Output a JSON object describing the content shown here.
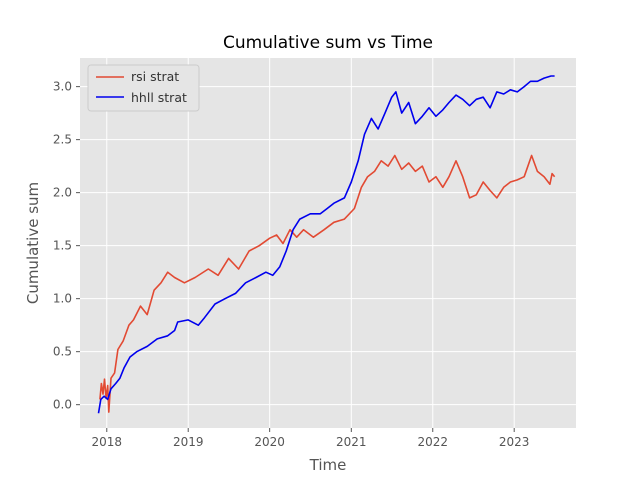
{
  "chart_data": {
    "type": "line",
    "title": "Cumulative sum vs Time",
    "xlabel": "Time",
    "ylabel": "Cumulative sum",
    "x_ticks": [
      "2018",
      "2019",
      "2020",
      "2021",
      "2022",
      "2023"
    ],
    "y_ticks": [
      "0.0",
      "0.5",
      "1.0",
      "1.5",
      "2.0",
      "2.5",
      "3.0"
    ],
    "xlim": [
      "2017-09-03",
      "2023-10-05"
    ],
    "ylim": [
      -0.22,
      3.27
    ],
    "grid": true,
    "legend_position": "top-left",
    "series": [
      {
        "name": "rsi strat",
        "color": "#E24A33",
        "points": [
          [
            "2017-12-01",
            0.05
          ],
          [
            "2017-12-08",
            0.2
          ],
          [
            "2017-12-15",
            0.1
          ],
          [
            "2017-12-22",
            0.24
          ],
          [
            "2017-12-29",
            0.06
          ],
          [
            "2018-01-05",
            0.18
          ],
          [
            "2018-01-10",
            -0.07
          ],
          [
            "2018-01-20",
            0.25
          ],
          [
            "2018-02-05",
            0.3
          ],
          [
            "2018-02-20",
            0.52
          ],
          [
            "2018-03-15",
            0.6
          ],
          [
            "2018-04-10",
            0.75
          ],
          [
            "2018-05-01",
            0.8
          ],
          [
            "2018-06-01",
            0.93
          ],
          [
            "2018-07-01",
            0.85
          ],
          [
            "2018-08-01",
            1.08
          ],
          [
            "2018-09-01",
            1.15
          ],
          [
            "2018-10-01",
            1.25
          ],
          [
            "2018-11-01",
            1.2
          ],
          [
            "2018-12-15",
            1.15
          ],
          [
            "2019-02-01",
            1.2
          ],
          [
            "2019-04-01",
            1.28
          ],
          [
            "2019-05-15",
            1.22
          ],
          [
            "2019-07-01",
            1.38
          ],
          [
            "2019-08-15",
            1.28
          ],
          [
            "2019-10-01",
            1.45
          ],
          [
            "2019-11-15",
            1.5
          ],
          [
            "2020-01-01",
            1.57
          ],
          [
            "2020-02-01",
            1.6
          ],
          [
            "2020-03-01",
            1.52
          ],
          [
            "2020-04-01",
            1.65
          ],
          [
            "2020-05-01",
            1.58
          ],
          [
            "2020-06-01",
            1.65
          ],
          [
            "2020-07-15",
            1.58
          ],
          [
            "2020-09-01",
            1.65
          ],
          [
            "2020-10-15",
            1.72
          ],
          [
            "2020-12-01",
            1.75
          ],
          [
            "2021-01-15",
            1.85
          ],
          [
            "2021-02-15",
            2.05
          ],
          [
            "2021-03-15",
            2.15
          ],
          [
            "2021-04-15",
            2.2
          ],
          [
            "2021-05-15",
            2.3
          ],
          [
            "2021-06-15",
            2.25
          ],
          [
            "2021-07-15",
            2.35
          ],
          [
            "2021-08-15",
            2.22
          ],
          [
            "2021-09-15",
            2.28
          ],
          [
            "2021-10-15",
            2.2
          ],
          [
            "2021-11-15",
            2.25
          ],
          [
            "2021-12-15",
            2.1
          ],
          [
            "2022-01-15",
            2.15
          ],
          [
            "2022-02-15",
            2.05
          ],
          [
            "2022-03-15",
            2.15
          ],
          [
            "2022-04-15",
            2.3
          ],
          [
            "2022-05-15",
            2.15
          ],
          [
            "2022-06-15",
            1.95
          ],
          [
            "2022-07-15",
            1.98
          ],
          [
            "2022-08-15",
            2.1
          ],
          [
            "2022-09-15",
            2.02
          ],
          [
            "2022-10-15",
            1.95
          ],
          [
            "2022-11-15",
            2.05
          ],
          [
            "2022-12-15",
            2.1
          ],
          [
            "2023-01-15",
            2.12
          ],
          [
            "2023-02-15",
            2.15
          ],
          [
            "2023-03-20",
            2.35
          ],
          [
            "2023-04-15",
            2.2
          ],
          [
            "2023-05-15",
            2.15
          ],
          [
            "2023-06-10",
            2.08
          ],
          [
            "2023-06-20",
            2.18
          ],
          [
            "2023-07-01",
            2.15
          ]
        ]
      },
      {
        "name": "hhll strat",
        "color": "#0000EE",
        "points": [
          [
            "2017-11-25",
            -0.08
          ],
          [
            "2017-12-05",
            0.05
          ],
          [
            "2017-12-20",
            0.08
          ],
          [
            "2018-01-05",
            0.05
          ],
          [
            "2018-01-20",
            0.15
          ],
          [
            "2018-02-10",
            0.2
          ],
          [
            "2018-03-01",
            0.25
          ],
          [
            "2018-03-20",
            0.35
          ],
          [
            "2018-04-15",
            0.45
          ],
          [
            "2018-05-15",
            0.5
          ],
          [
            "2018-07-01",
            0.55
          ],
          [
            "2018-08-15",
            0.62
          ],
          [
            "2018-10-01",
            0.65
          ],
          [
            "2018-11-01",
            0.7
          ],
          [
            "2018-11-15",
            0.78
          ],
          [
            "2019-01-01",
            0.8
          ],
          [
            "2019-02-15",
            0.75
          ],
          [
            "2019-03-15",
            0.82
          ],
          [
            "2019-05-01",
            0.95
          ],
          [
            "2019-06-15",
            1.0
          ],
          [
            "2019-08-01",
            1.05
          ],
          [
            "2019-09-15",
            1.15
          ],
          [
            "2019-11-01",
            1.2
          ],
          [
            "2019-12-15",
            1.25
          ],
          [
            "2020-01-15",
            1.22
          ],
          [
            "2020-02-15",
            1.3
          ],
          [
            "2020-03-15",
            1.45
          ],
          [
            "2020-04-15",
            1.65
          ],
          [
            "2020-05-15",
            1.75
          ],
          [
            "2020-07-01",
            1.8
          ],
          [
            "2020-08-15",
            1.8
          ],
          [
            "2020-09-15",
            1.85
          ],
          [
            "2020-10-15",
            1.9
          ],
          [
            "2020-12-01",
            1.95
          ],
          [
            "2021-01-01",
            2.1
          ],
          [
            "2021-02-01",
            2.3
          ],
          [
            "2021-03-01",
            2.55
          ],
          [
            "2021-04-01",
            2.7
          ],
          [
            "2021-05-01",
            2.6
          ],
          [
            "2021-06-01",
            2.75
          ],
          [
            "2021-07-01",
            2.9
          ],
          [
            "2021-07-20",
            2.95
          ],
          [
            "2021-08-15",
            2.75
          ],
          [
            "2021-09-15",
            2.85
          ],
          [
            "2021-10-15",
            2.65
          ],
          [
            "2021-11-15",
            2.72
          ],
          [
            "2021-12-15",
            2.8
          ],
          [
            "2022-01-15",
            2.72
          ],
          [
            "2022-02-15",
            2.78
          ],
          [
            "2022-03-15",
            2.85
          ],
          [
            "2022-04-15",
            2.92
          ],
          [
            "2022-05-15",
            2.88
          ],
          [
            "2022-06-15",
            2.82
          ],
          [
            "2022-07-15",
            2.88
          ],
          [
            "2022-08-15",
            2.9
          ],
          [
            "2022-09-15",
            2.8
          ],
          [
            "2022-10-15",
            2.95
          ],
          [
            "2022-11-15",
            2.93
          ],
          [
            "2022-12-15",
            2.97
          ],
          [
            "2023-01-15",
            2.95
          ],
          [
            "2023-02-15",
            3.0
          ],
          [
            "2023-03-15",
            3.05
          ],
          [
            "2023-04-15",
            3.05
          ],
          [
            "2023-05-15",
            3.08
          ],
          [
            "2023-06-15",
            3.1
          ],
          [
            "2023-07-01",
            3.1
          ]
        ]
      }
    ]
  }
}
